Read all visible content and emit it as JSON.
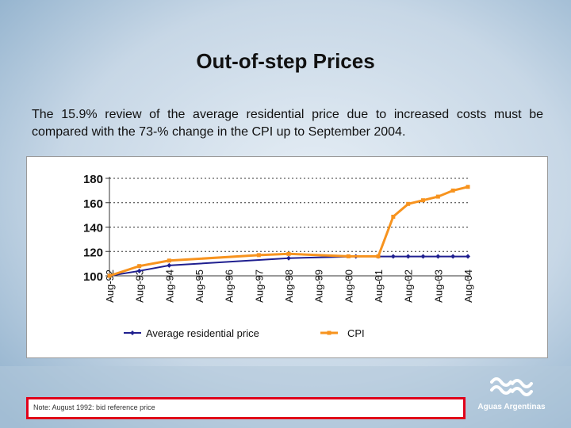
{
  "slide": {
    "title": "Out-of-step Prices",
    "subtitle": "The 15.9% review of the average residential price due to increased costs must be compared with the 73-% change in the CPI up to September 2004.",
    "note": "Note: August 1992: bid reference price",
    "logo_text": "Aguas Argentinas"
  },
  "colors": {
    "background": "#c9d9e7",
    "series_residential": "#1f1f8f",
    "series_cpi": "#f7931e",
    "note_border": "#e0001a"
  },
  "icons": {
    "logo": "aguas-argentinas-wave-logo"
  },
  "chart_data": {
    "type": "line",
    "title": "",
    "xlabel": "",
    "ylabel": "",
    "ylim": [
      100,
      180
    ],
    "y_ticks": [
      100,
      120,
      140,
      160,
      180
    ],
    "categories": [
      "Aug-92",
      "Aug-93",
      "Aug-94",
      "Aug-95",
      "Aug-96",
      "Aug-97",
      "Aug-98",
      "Aug-99",
      "Aug-00",
      "Aug-01",
      "Aug-02",
      "Aug-03",
      "Aug-04"
    ],
    "grid": true,
    "legend": "bottom",
    "series": [
      {
        "name": "Average residential price",
        "color": "#1f1f8f",
        "points": [
          {
            "x": 0.0,
            "y": 100
          },
          {
            "x": 1.0,
            "y": 104
          },
          {
            "x": 2.0,
            "y": 108.5
          },
          {
            "x": 6.0,
            "y": 114.5
          },
          {
            "x": 8.25,
            "y": 115.9
          },
          {
            "x": 9.0,
            "y": 115.9
          },
          {
            "x": 9.5,
            "y": 115.9
          },
          {
            "x": 10.0,
            "y": 115.9
          },
          {
            "x": 10.5,
            "y": 115.9
          },
          {
            "x": 11.0,
            "y": 115.9
          },
          {
            "x": 11.5,
            "y": 115.9
          },
          {
            "x": 12.0,
            "y": 115.9
          }
        ]
      },
      {
        "name": "CPI",
        "color": "#f7931e",
        "points": [
          {
            "x": 0.0,
            "y": 100
          },
          {
            "x": 1.0,
            "y": 108
          },
          {
            "x": 2.0,
            "y": 112.5
          },
          {
            "x": 5.0,
            "y": 117
          },
          {
            "x": 6.0,
            "y": 118
          },
          {
            "x": 8.0,
            "y": 116
          },
          {
            "x": 9.0,
            "y": 116
          },
          {
            "x": 9.5,
            "y": 148.5
          },
          {
            "x": 10.0,
            "y": 159
          },
          {
            "x": 10.5,
            "y": 162
          },
          {
            "x": 11.0,
            "y": 165
          },
          {
            "x": 11.5,
            "y": 170
          },
          {
            "x": 12.0,
            "y": 173
          }
        ]
      }
    ]
  }
}
